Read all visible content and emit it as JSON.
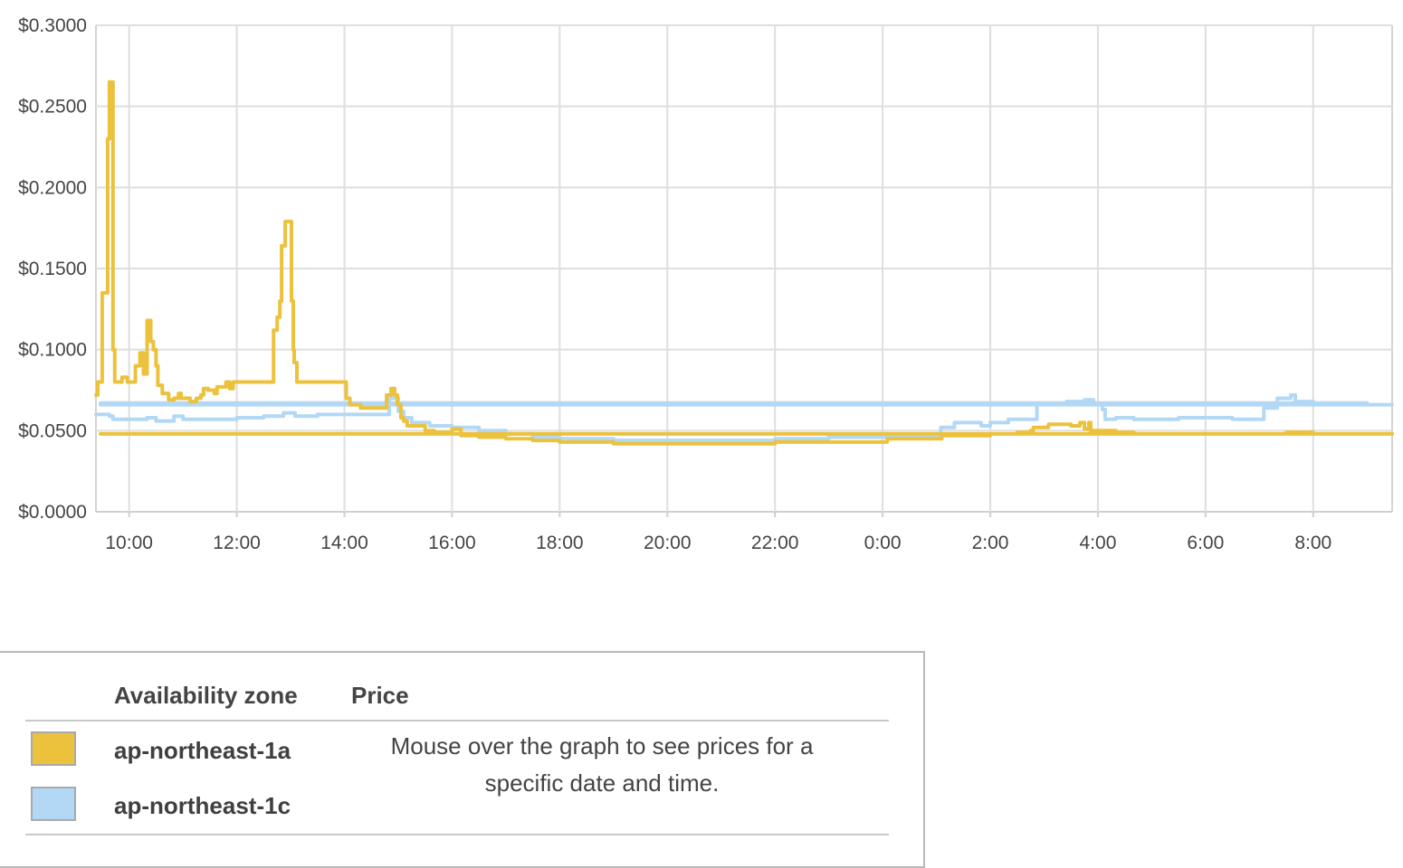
{
  "chart_data": {
    "type": "line",
    "y_ticks": [
      "$0.0000",
      "$0.0500",
      "$0.1000",
      "$0.1500",
      "$0.2000",
      "$0.2500",
      "$0.3000"
    ],
    "ylim": [
      0,
      0.3
    ],
    "x_ticks": [
      "10:00",
      "12:00",
      "14:00",
      "16:00",
      "18:00",
      "20:00",
      "22:00",
      "0:00",
      "2:00",
      "4:00",
      "6:00",
      "8:00"
    ],
    "xlim": [
      "09:23",
      "09:28 (+1 day)"
    ],
    "grid": true,
    "series": [
      {
        "name": "ap-northeast-1a",
        "color": "#ecc23d",
        "points": [
          [
            "09:23",
            0.072
          ],
          [
            "09:25",
            0.08
          ],
          [
            "09:28",
            0.08
          ],
          [
            "09:30",
            0.135
          ],
          [
            "09:34",
            0.135
          ],
          [
            "09:36",
            0.23
          ],
          [
            "09:38",
            0.265
          ],
          [
            "09:41",
            0.265
          ],
          [
            "09:42",
            0.1
          ],
          [
            "09:44",
            0.08
          ],
          [
            "09:50",
            0.08
          ],
          [
            "09:52",
            0.083
          ],
          [
            "09:56",
            0.083
          ],
          [
            "09:58",
            0.08
          ],
          [
            "10:06",
            0.08
          ],
          [
            "10:07",
            0.09
          ],
          [
            "10:10",
            0.09
          ],
          [
            "10:12",
            0.098
          ],
          [
            "10:15",
            0.098
          ],
          [
            "10:16",
            0.085
          ],
          [
            "10:19",
            0.085
          ],
          [
            "10:20",
            0.118
          ],
          [
            "10:23",
            0.118
          ],
          [
            "10:24",
            0.105
          ],
          [
            "10:27",
            0.1
          ],
          [
            "10:30",
            0.09
          ],
          [
            "10:32",
            0.078
          ],
          [
            "10:36",
            0.078
          ],
          [
            "10:37",
            0.073
          ],
          [
            "10:42",
            0.073
          ],
          [
            "10:44",
            0.069
          ],
          [
            "10:50",
            0.07
          ],
          [
            "10:55",
            0.073
          ],
          [
            "10:58",
            0.07
          ],
          [
            "11:05",
            0.07
          ],
          [
            "11:08",
            0.068
          ],
          [
            "11:15",
            0.07
          ],
          [
            "11:20",
            0.072
          ],
          [
            "11:23",
            0.076
          ],
          [
            "11:28",
            0.075
          ],
          [
            "11:35",
            0.073
          ],
          [
            "11:38",
            0.077
          ],
          [
            "11:45",
            0.077
          ],
          [
            "11:48",
            0.08
          ],
          [
            "11:52",
            0.076
          ],
          [
            "11:56",
            0.08
          ],
          [
            "12:40",
            0.08
          ],
          [
            "12:41",
            0.112
          ],
          [
            "12:44",
            0.112
          ],
          [
            "12:45",
            0.12
          ],
          [
            "12:48",
            0.13
          ],
          [
            "12:50",
            0.164
          ],
          [
            "12:53",
            0.164
          ],
          [
            "12:54",
            0.179
          ],
          [
            "13:00",
            0.179
          ],
          [
            "13:01",
            0.13
          ],
          [
            "13:03",
            0.1
          ],
          [
            "13:04",
            0.092
          ],
          [
            "13:06",
            0.092
          ],
          [
            "13:07",
            0.08
          ],
          [
            "14:00",
            0.08
          ],
          [
            "14:02",
            0.07
          ],
          [
            "14:06",
            0.066
          ],
          [
            "14:15",
            0.066
          ],
          [
            "14:18",
            0.064
          ],
          [
            "14:45",
            0.064
          ],
          [
            "14:47",
            0.072
          ],
          [
            "14:52",
            0.076
          ],
          [
            "14:56",
            0.072
          ],
          [
            "14:59",
            0.066
          ],
          [
            "15:03",
            0.058
          ],
          [
            "15:06",
            0.056
          ],
          [
            "15:10",
            0.053
          ],
          [
            "15:30",
            0.05
          ],
          [
            "15:40",
            0.049
          ],
          [
            "16:00",
            0.051
          ],
          [
            "16:10",
            0.047
          ],
          [
            "16:30",
            0.046
          ],
          [
            "17:00",
            0.045
          ],
          [
            "17:30",
            0.044
          ],
          [
            "18:00",
            0.043
          ],
          [
            "19:00",
            0.042
          ],
          [
            "20:00",
            0.042
          ],
          [
            "21:00",
            0.042
          ],
          [
            "22:00",
            0.043
          ],
          [
            "23:00",
            0.043
          ],
          [
            "23:58",
            0.043
          ],
          [
            "00:05",
            0.045
          ],
          [
            "00:30",
            0.045
          ],
          [
            "01:00",
            0.045
          ],
          [
            "01:06",
            0.047
          ],
          [
            "01:40",
            0.047
          ],
          [
            "02:00",
            0.048
          ],
          [
            "02:30",
            0.049
          ],
          [
            "02:45",
            0.05
          ],
          [
            "02:48",
            0.052
          ],
          [
            "03:00",
            0.052
          ],
          [
            "03:05",
            0.054
          ],
          [
            "03:30",
            0.053
          ],
          [
            "03:40",
            0.055
          ],
          [
            "03:45",
            0.051
          ],
          [
            "03:50",
            0.055
          ],
          [
            "03:52",
            0.05
          ],
          [
            "04:20",
            0.049
          ],
          [
            "04:40",
            0.048
          ],
          [
            "05:00",
            0.048
          ],
          [
            "06:00",
            0.048
          ],
          [
            "07:00",
            0.048
          ],
          [
            "07:30",
            0.049
          ],
          [
            "08:00",
            0.048
          ],
          [
            "09:28",
            0.048
          ]
        ]
      },
      {
        "name": "ap-northeast-1c",
        "color": "#b2d8f5",
        "points": [
          [
            "09:23",
            0.06
          ],
          [
            "09:38",
            0.059
          ],
          [
            "09:42",
            0.057
          ],
          [
            "10:00",
            0.057
          ],
          [
            "10:20",
            0.058
          ],
          [
            "10:30",
            0.056
          ],
          [
            "10:50",
            0.059
          ],
          [
            "11:00",
            0.057
          ],
          [
            "11:30",
            0.057
          ],
          [
            "12:00",
            0.058
          ],
          [
            "12:30",
            0.059
          ],
          [
            "12:48",
            0.059
          ],
          [
            "12:52",
            0.061
          ],
          [
            "13:02",
            0.061
          ],
          [
            "13:05",
            0.059
          ],
          [
            "13:30",
            0.06
          ],
          [
            "13:50",
            0.06
          ],
          [
            "14:00",
            0.06
          ],
          [
            "14:30",
            0.06
          ],
          [
            "14:47",
            0.06
          ],
          [
            "14:50",
            0.07
          ],
          [
            "14:57",
            0.07
          ],
          [
            "15:00",
            0.062
          ],
          [
            "15:06",
            0.058
          ],
          [
            "15:15",
            0.055
          ],
          [
            "15:35",
            0.053
          ],
          [
            "16:00",
            0.052
          ],
          [
            "16:30",
            0.05
          ],
          [
            "17:00",
            0.048
          ],
          [
            "17:30",
            0.046
          ],
          [
            "18:00",
            0.045
          ],
          [
            "19:00",
            0.044
          ],
          [
            "20:00",
            0.044
          ],
          [
            "21:00",
            0.044
          ],
          [
            "22:00",
            0.045
          ],
          [
            "23:00",
            0.046
          ],
          [
            "23:50",
            0.046
          ],
          [
            "00:05",
            0.046
          ],
          [
            "00:30",
            0.046
          ],
          [
            "00:55",
            0.047
          ],
          [
            "01:05",
            0.052
          ],
          [
            "01:20",
            0.055
          ],
          [
            "01:45",
            0.055
          ],
          [
            "01:50",
            0.053
          ],
          [
            "02:00",
            0.055
          ],
          [
            "02:15",
            0.055
          ],
          [
            "02:20",
            0.057
          ],
          [
            "02:50",
            0.057
          ],
          [
            "02:52",
            0.066
          ],
          [
            "03:20",
            0.066
          ],
          [
            "03:25",
            0.068
          ],
          [
            "03:45",
            0.069
          ],
          [
            "03:55",
            0.067
          ],
          [
            "04:05",
            0.063
          ],
          [
            "04:08",
            0.057
          ],
          [
            "04:20",
            0.058
          ],
          [
            "04:40",
            0.057
          ],
          [
            "05:00",
            0.057
          ],
          [
            "05:30",
            0.058
          ],
          [
            "06:00",
            0.058
          ],
          [
            "06:30",
            0.057
          ],
          [
            "07:00",
            0.057
          ],
          [
            "07:05",
            0.064
          ],
          [
            "07:20",
            0.07
          ],
          [
            "07:35",
            0.072
          ],
          [
            "07:40",
            0.068
          ],
          [
            "08:00",
            0.066
          ],
          [
            "08:30",
            0.067
          ],
          [
            "09:00",
            0.067
          ],
          [
            "09:28",
            0.066
          ]
        ]
      }
    ]
  },
  "legend": {
    "header_zone": "Availability zone",
    "header_price": "Price",
    "hint_line1": "Mouse over the graph to see prices for a",
    "hint_line2": "specific date and time.",
    "zones": [
      {
        "label": "ap-northeast-1a",
        "color": "#ecc23d"
      },
      {
        "label": "ap-northeast-1c",
        "color": "#b2d8f5"
      }
    ]
  }
}
